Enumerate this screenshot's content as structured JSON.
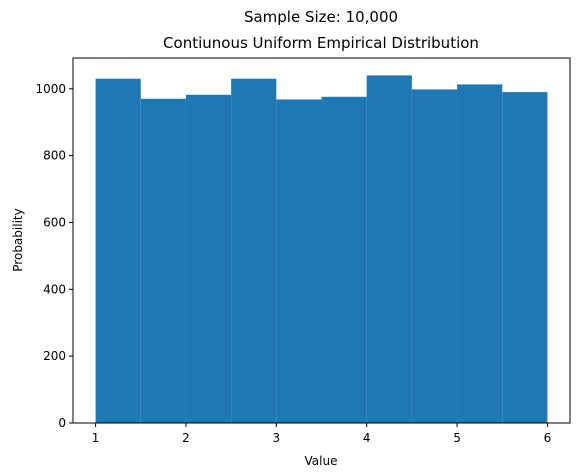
{
  "chart_data": {
    "type": "bar",
    "title_line1": "Sample Size: 10,000",
    "title_line2": "Contiunous Uniform Empirical Distribution",
    "xlabel": "Value",
    "ylabel": "Probability",
    "bin_edges": [
      1.0,
      1.5,
      2.0,
      2.5,
      3.0,
      3.5,
      4.0,
      4.5,
      5.0,
      5.5,
      6.0
    ],
    "values": [
      1030,
      970,
      982,
      1030,
      968,
      976,
      1040,
      998,
      1013,
      990
    ],
    "xlim": [
      0.75,
      6.25
    ],
    "ylim": [
      0,
      1092
    ],
    "xticks": [
      1,
      2,
      3,
      4,
      5,
      6
    ],
    "yticks": [
      0,
      200,
      400,
      600,
      800,
      1000
    ],
    "grid": false,
    "bar_color": "#1f77b4"
  }
}
